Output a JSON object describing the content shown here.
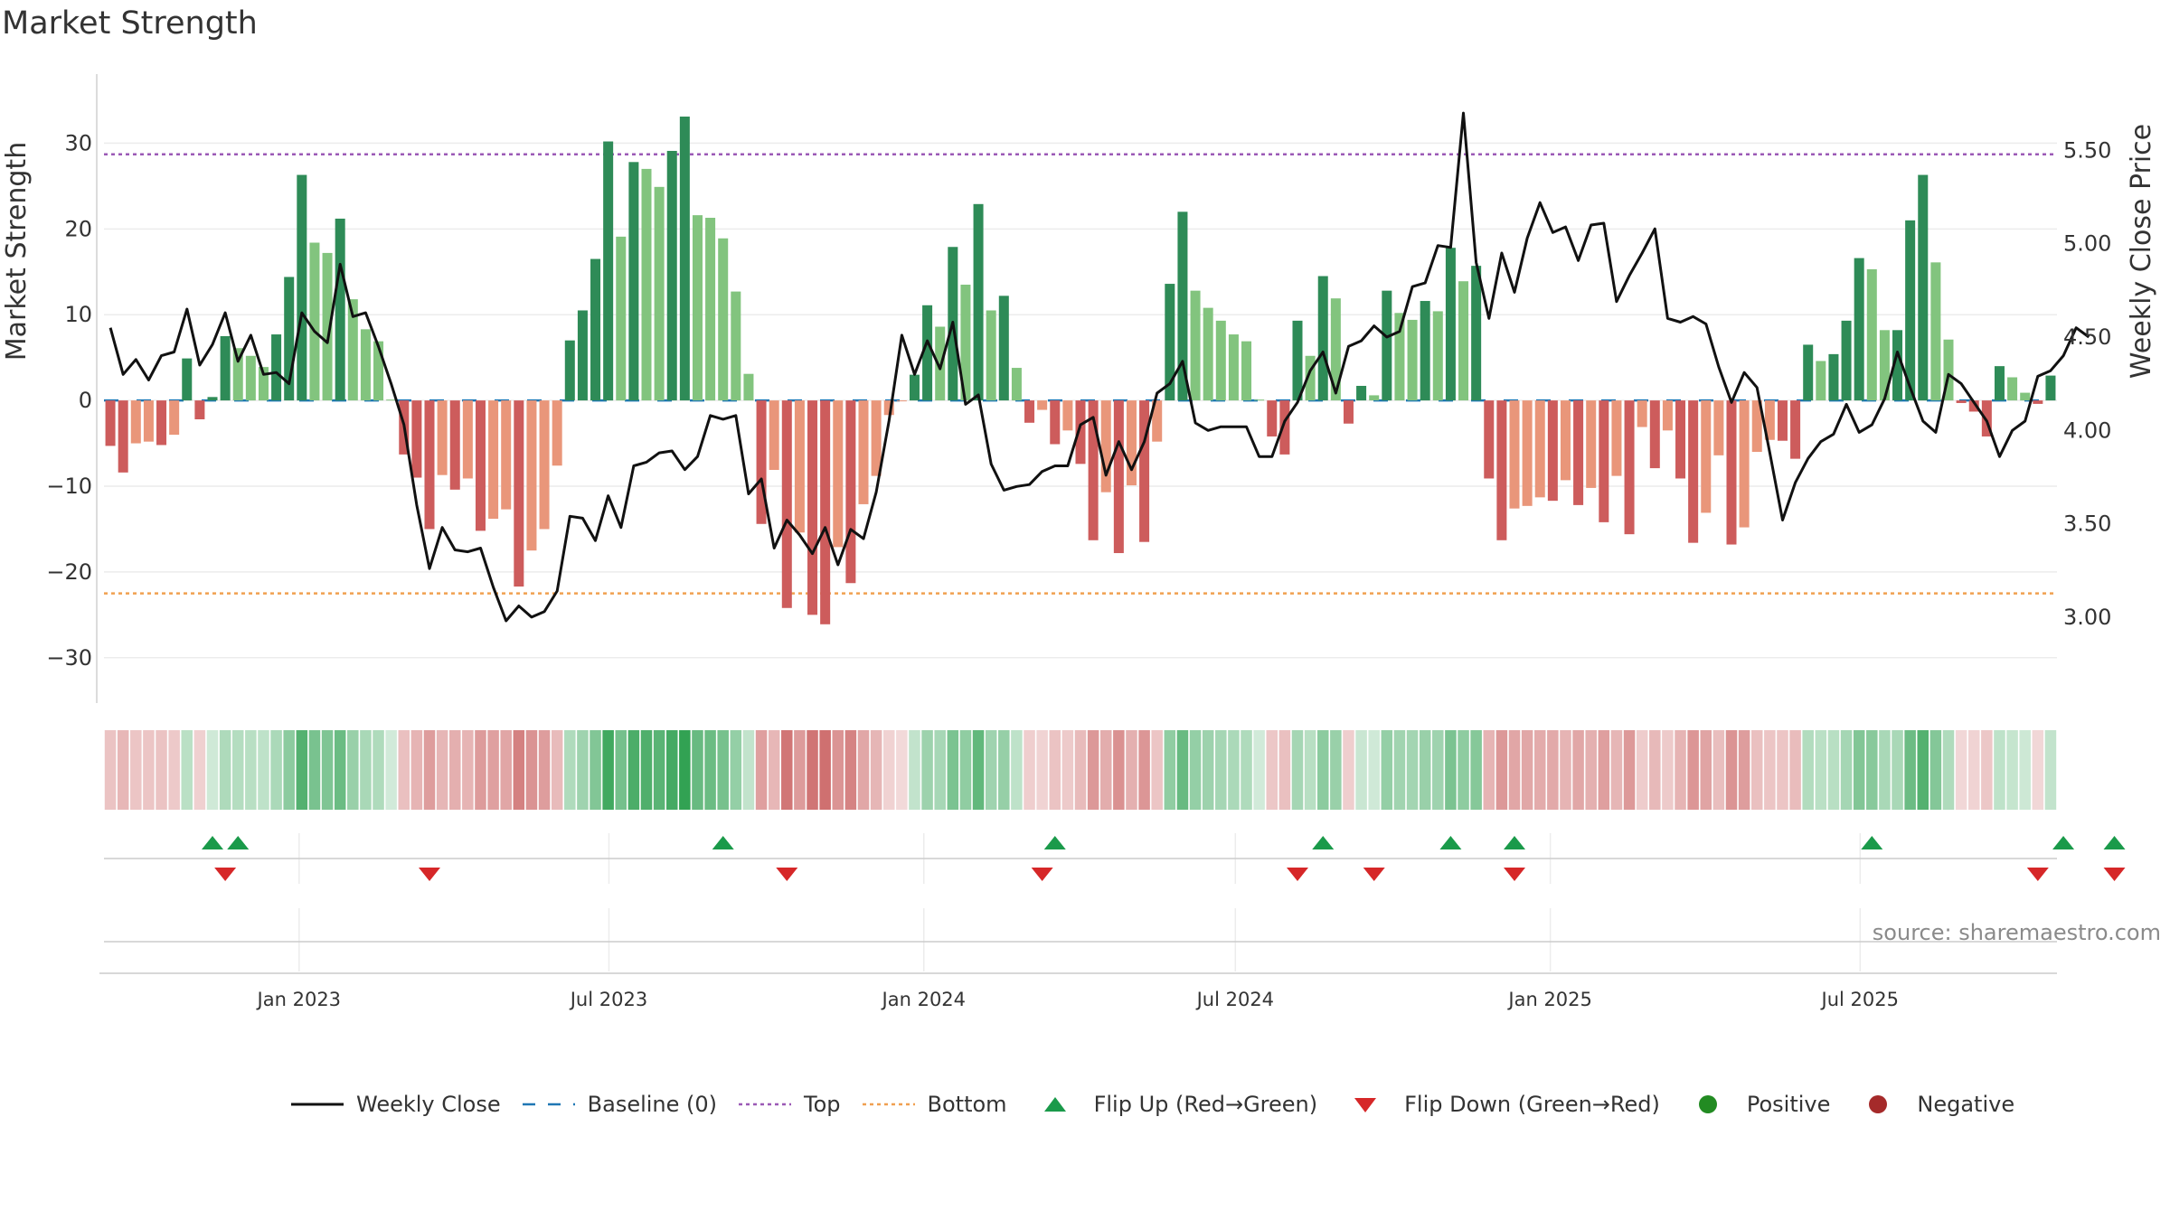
{
  "title": "Market Strength",
  "source": "source: sharemaestro.com",
  "legend": [
    {
      "key": "close",
      "label": "Weekly Close"
    },
    {
      "key": "baseline",
      "label": "Baseline (0)"
    },
    {
      "key": "top",
      "label": "Top"
    },
    {
      "key": "bottom",
      "label": "Bottom"
    },
    {
      "key": "flipup",
      "label": "Flip Up (Red→Green)"
    },
    {
      "key": "flipdown",
      "label": "Flip Down (Green→Red)"
    },
    {
      "key": "positive",
      "label": "Positive"
    },
    {
      "key": "negative",
      "label": "Negative"
    }
  ],
  "colors": {
    "pos_dark": "#2e8b57",
    "pos_light": "#82c47e",
    "neg_dark": "#cd5c5c",
    "neg_light": "#e9967a",
    "close": "#111111",
    "baseline": "#1f77b4",
    "top": "#9b59b6",
    "bottom": "#f0a050",
    "flipup": "#1a9a4a",
    "flipdown": "#d62728",
    "positive": "#228b22",
    "negative": "#a52a2a"
  },
  "chart_data": {
    "type": "bar+line",
    "title": "Market Strength",
    "ylabel_left": "Market Strength",
    "ylabel_right": "Weekly Close Price",
    "ylim_left": [
      -35.5,
      37
    ],
    "yticks_left": [
      30,
      20,
      10,
      0,
      -10,
      -20,
      -30
    ],
    "ytick_labels_left": [
      "30",
      "20",
      "10",
      "0",
      "−10",
      "−20",
      "−30"
    ],
    "ylim_right": [
      2.53,
      5.86
    ],
    "yticks_right": [
      5.5,
      5.0,
      4.5,
      4.0,
      3.5,
      3.0
    ],
    "ytick_labels_right": [
      "5.50",
      "5.00",
      "4.50",
      "4.00",
      "3.50",
      "3.00"
    ],
    "top_level": 28.7,
    "bottom_level": -22.5,
    "x_start": "2022-09-09",
    "x_end": "2025-10-24",
    "date_ticks": [
      {
        "date": "2023-01-01",
        "label": "Jan 2023"
      },
      {
        "date": "2023-07-01",
        "label": "Jul 2023"
      },
      {
        "date": "2024-01-01",
        "label": "Jan 2024"
      },
      {
        "date": "2024-07-01",
        "label": "Jul 2024"
      },
      {
        "date": "2025-01-01",
        "label": "Jan 2025"
      },
      {
        "date": "2025-07-01",
        "label": "Jul 2025"
      }
    ],
    "strength": [
      -5.3,
      -8.4,
      -5.0,
      -4.8,
      -5.2,
      -4.0,
      4.9,
      -2.2,
      0.4,
      7.5,
      6.1,
      5.2,
      3.9,
      7.7,
      14.4,
      26.3,
      18.4,
      17.2,
      21.2,
      11.8,
      8.3,
      6.9,
      0.1,
      -6.3,
      -9.0,
      -15.0,
      -8.7,
      -10.4,
      -9.1,
      -15.2,
      -13.8,
      -12.7,
      -21.7,
      -17.5,
      -15.0,
      -7.6,
      7.0,
      10.5,
      16.5,
      30.2,
      19.1,
      27.8,
      27.0,
      24.9,
      29.1,
      33.1,
      21.6,
      21.3,
      18.9,
      12.7,
      3.1,
      -14.4,
      -8.1,
      -24.2,
      -15.4,
      -25.0,
      -26.1,
      -17.1,
      -21.3,
      -12.1,
      -8.8,
      -1.7,
      -0.1,
      3.0,
      11.1,
      8.6,
      17.9,
      13.5,
      22.9,
      10.5,
      12.2,
      3.8,
      -2.6,
      -1.1,
      -5.1,
      -3.5,
      -7.4,
      -16.3,
      -10.7,
      -17.8,
      -9.9,
      -16.5,
      -4.8,
      13.6,
      22.0,
      12.8,
      10.8,
      9.3,
      7.7,
      6.9,
      0.1,
      -4.2,
      -6.3,
      9.3,
      5.2,
      14.5,
      11.9,
      -2.7,
      1.7,
      0.6,
      12.8,
      10.2,
      9.4,
      11.6,
      10.4,
      17.8,
      13.9,
      15.7,
      -9.1,
      -16.3,
      -12.6,
      -12.3,
      -11.3,
      -11.7,
      -9.3,
      -12.2,
      -10.2,
      -14.2,
      -8.8,
      -15.6,
      -3.1,
      -7.9,
      -3.5,
      -9.1,
      -16.6,
      -13.1,
      -6.4,
      -16.8,
      -14.8,
      -6.0,
      -4.6,
      -4.7,
      -6.8,
      6.5,
      4.6,
      5.4,
      9.3,
      16.6,
      15.3,
      8.2,
      8.2,
      21.0,
      26.3,
      16.1,
      7.1,
      -0.3,
      -1.3,
      -4.2,
      4.0,
      2.7,
      0.9,
      -0.4,
      2.9
    ],
    "close": [
      4.55,
      4.3,
      4.38,
      4.27,
      4.4,
      4.42,
      4.65,
      4.35,
      4.46,
      4.63,
      4.37,
      4.51,
      4.3,
      4.31,
      4.25,
      4.63,
      4.53,
      4.47,
      4.89,
      4.61,
      4.63,
      4.45,
      4.25,
      4.03,
      3.6,
      3.26,
      3.48,
      3.36,
      3.35,
      3.37,
      3.16,
      2.98,
      3.06,
      3.0,
      3.03,
      3.14,
      3.54,
      3.53,
      3.41,
      3.65,
      3.48,
      3.81,
      3.83,
      3.88,
      3.89,
      3.79,
      3.86,
      4.08,
      4.06,
      4.08,
      3.66,
      3.74,
      3.37,
      3.52,
      3.44,
      3.34,
      3.48,
      3.28,
      3.47,
      3.42,
      3.67,
      4.05,
      4.51,
      4.3,
      4.48,
      4.33,
      4.58,
      4.14,
      4.19,
      3.82,
      3.68,
      3.7,
      3.71,
      3.78,
      3.81,
      3.81,
      4.03,
      4.07,
      3.76,
      3.94,
      3.79,
      3.94,
      4.2,
      4.25,
      4.37,
      4.04,
      4.0,
      4.02,
      4.02,
      4.02,
      3.86,
      3.86,
      4.05,
      4.15,
      4.32,
      4.42,
      4.2,
      4.45,
      4.48,
      4.56,
      4.5,
      4.53,
      4.77,
      4.79,
      4.99,
      4.98,
      5.7,
      4.9,
      4.6,
      4.95,
      4.74,
      5.03,
      5.22,
      5.06,
      5.09,
      4.91,
      5.1,
      5.11,
      4.69,
      4.83,
      4.95,
      5.08,
      4.6,
      4.58,
      4.61,
      4.57,
      4.34,
      4.15,
      4.31,
      4.23,
      3.88,
      3.52,
      3.72,
      3.85,
      3.94,
      3.98,
      4.14,
      3.99,
      4.03,
      4.17,
      4.42,
      4.23,
      4.05,
      3.99,
      4.3,
      4.25,
      4.15,
      4.05,
      3.86,
      4.0,
      4.05,
      4.29,
      4.32,
      4.4,
      4.55,
      4.5
    ],
    "flip_up_weeks": [
      8,
      10,
      48,
      74,
      95,
      105,
      110,
      138,
      153,
      157
    ],
    "flip_down_weeks": [
      9,
      25,
      53,
      73,
      93,
      99,
      110,
      151,
      157
    ]
  }
}
